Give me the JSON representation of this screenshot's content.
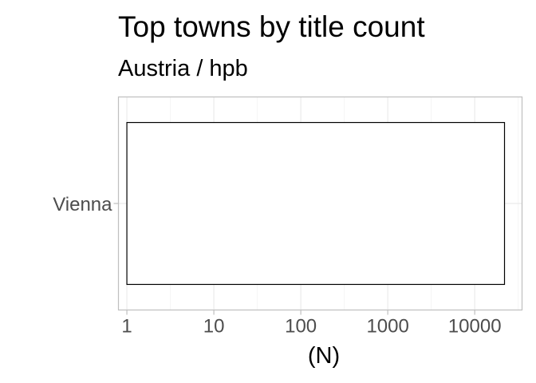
{
  "chart_data": {
    "type": "bar",
    "orientation": "horizontal",
    "title": "Top towns by title count",
    "subtitle": "Austria / hpb",
    "xlabel": "(N)",
    "ylabel": "",
    "x_scale": "log10",
    "xlim": [
      0.8,
      35000
    ],
    "x_ticks": [
      1,
      10,
      100,
      1000,
      10000
    ],
    "x_tick_labels": [
      "1",
      "10",
      "100",
      "1000",
      "10000"
    ],
    "categories": [
      "Vienna"
    ],
    "values": [
      22000
    ],
    "grid": true,
    "legend": "none",
    "colors": {
      "bar_fill": "#ffffff",
      "bar_stroke": "#000000",
      "grid_major": "#ebebeb",
      "grid_minor": "#f5f5f5",
      "panel_border": "#bfbfbf",
      "tick_text": "#4d4d4d",
      "title_text": "#000000"
    }
  }
}
